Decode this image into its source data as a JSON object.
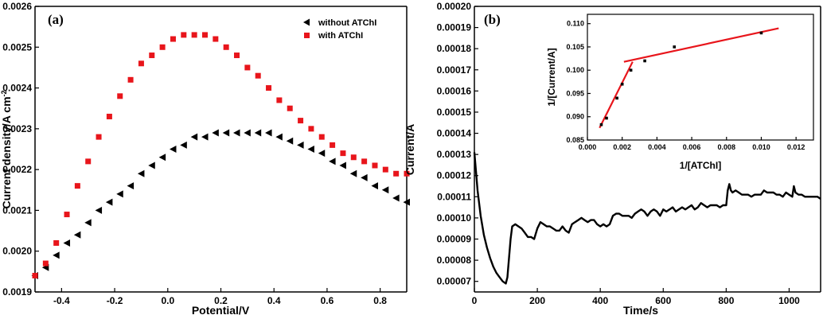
{
  "chart_data": [
    {
      "type": "scatter",
      "panel_label": "(a)",
      "xlabel": "Potential/V",
      "ylabel": "Current density/A cm",
      "ylabel_superscript": "-2",
      "xlim": [
        -0.5,
        0.9
      ],
      "ylim": [
        0.0019,
        0.0026
      ],
      "xticks": [
        -0.4,
        -0.2,
        0.0,
        0.2,
        0.4,
        0.6,
        0.8
      ],
      "xtick_labels": [
        "-0.4",
        "-0.2",
        "0.0",
        "0.2",
        "0.4",
        "0.6",
        "0.8"
      ],
      "yticks": [
        0.0019,
        0.002,
        0.0021,
        0.0022,
        0.0023,
        0.0024,
        0.0025,
        0.0026
      ],
      "ytick_labels": [
        "0.0019",
        "0.0020",
        "0.0021",
        "0.0022",
        "0.0023",
        "0.0024",
        "0.0025",
        "0.0026"
      ],
      "legend_position": "top-right",
      "series": [
        {
          "name": "without ATChI",
          "marker": "triangle-left",
          "color": "#000000",
          "x": [
            -0.5,
            -0.46,
            -0.42,
            -0.38,
            -0.34,
            -0.3,
            -0.26,
            -0.22,
            -0.18,
            -0.14,
            -0.1,
            -0.06,
            -0.02,
            0.02,
            0.06,
            0.1,
            0.14,
            0.18,
            0.22,
            0.26,
            0.3,
            0.34,
            0.38,
            0.42,
            0.46,
            0.5,
            0.54,
            0.58,
            0.62,
            0.66,
            0.7,
            0.74,
            0.78,
            0.82,
            0.86,
            0.9
          ],
          "y": [
            0.00194,
            0.00196,
            0.00199,
            0.00202,
            0.00204,
            0.00207,
            0.0021,
            0.00212,
            0.00214,
            0.00216,
            0.00219,
            0.00221,
            0.00223,
            0.00225,
            0.00226,
            0.00228,
            0.00228,
            0.00229,
            0.00229,
            0.00229,
            0.00229,
            0.00229,
            0.00229,
            0.00228,
            0.00227,
            0.00226,
            0.00225,
            0.00224,
            0.00222,
            0.00221,
            0.00219,
            0.00218,
            0.00216,
            0.00215,
            0.00213,
            0.00212
          ]
        },
        {
          "name": "with ATChI",
          "marker": "square",
          "color": "#e8151b",
          "x": [
            -0.5,
            -0.46,
            -0.42,
            -0.38,
            -0.34,
            -0.3,
            -0.26,
            -0.22,
            -0.18,
            -0.14,
            -0.1,
            -0.06,
            -0.02,
            0.02,
            0.06,
            0.1,
            0.14,
            0.18,
            0.22,
            0.26,
            0.3,
            0.34,
            0.38,
            0.42,
            0.46,
            0.5,
            0.54,
            0.58,
            0.62,
            0.66,
            0.7,
            0.74,
            0.78,
            0.82,
            0.86,
            0.9
          ],
          "y": [
            0.00194,
            0.00197,
            0.00202,
            0.00209,
            0.00216,
            0.00222,
            0.00228,
            0.00233,
            0.00238,
            0.00242,
            0.00246,
            0.00248,
            0.0025,
            0.00252,
            0.00253,
            0.00253,
            0.00253,
            0.00252,
            0.0025,
            0.00248,
            0.00245,
            0.00243,
            0.0024,
            0.00237,
            0.00235,
            0.00232,
            0.0023,
            0.00228,
            0.00226,
            0.00224,
            0.00223,
            0.00222,
            0.00221,
            0.0022,
            0.00219,
            0.00219
          ]
        }
      ]
    },
    {
      "type": "line",
      "panel_label": "(b)",
      "xlabel": "Time/s",
      "ylabel": "Current/A",
      "xlim": [
        0,
        1100
      ],
      "ylim": [
        6.5e-05,
        0.0002
      ],
      "xticks": [
        0,
        200,
        400,
        600,
        800,
        1000
      ],
      "xtick_labels": [
        "0",
        "200",
        "400",
        "600",
        "800",
        "1000"
      ],
      "yticks": [
        7e-05,
        8e-05,
        9e-05,
        0.0001,
        0.00011,
        0.00012,
        0.00013,
        0.00014,
        0.00015,
        0.00016,
        0.00017,
        0.00018,
        0.00019,
        0.0002
      ],
      "ytick_labels": [
        "0.00007",
        "0.00008",
        "0.00009",
        "0.00010",
        "0.00011",
        "0.00012",
        "0.00013",
        "0.00014",
        "0.00015",
        "0.00016",
        "0.00017",
        "0.00018",
        "0.00019",
        "0.00020"
      ],
      "series": [
        {
          "name": "current",
          "color": "#000000",
          "x": [
            0,
            5,
            10,
            20,
            30,
            40,
            50,
            60,
            70,
            80,
            90,
            100,
            105,
            110,
            115,
            120,
            130,
            140,
            150,
            160,
            170,
            180,
            190,
            200,
            210,
            220,
            230,
            240,
            250,
            260,
            270,
            280,
            290,
            300,
            310,
            320,
            330,
            340,
            350,
            360,
            370,
            380,
            390,
            400,
            410,
            420,
            430,
            440,
            450,
            460,
            470,
            480,
            490,
            500,
            510,
            520,
            530,
            540,
            550,
            560,
            570,
            580,
            590,
            600,
            610,
            620,
            630,
            640,
            650,
            660,
            670,
            680,
            690,
            700,
            710,
            720,
            730,
            740,
            750,
            760,
            770,
            780,
            790,
            800,
            805,
            810,
            815,
            820,
            830,
            840,
            850,
            860,
            870,
            880,
            890,
            900,
            910,
            920,
            930,
            940,
            950,
            960,
            970,
            980,
            990,
            1000,
            1010,
            1015,
            1020,
            1030,
            1040,
            1050,
            1060,
            1070,
            1080,
            1090,
            1100
          ],
          "y": [
            0.000131,
            0.000122,
            0.000113,
            0.000101,
            9.2e-05,
            8.6e-05,
            8.1e-05,
            7.7e-05,
            7.4e-05,
            7.2e-05,
            7e-05,
            6.9e-05,
            7.2e-05,
            8.1e-05,
            9e-05,
            9.6e-05,
            9.7e-05,
            9.6e-05,
            9.5e-05,
            9.3e-05,
            9.1e-05,
            9.1e-05,
            9e-05,
            9.5e-05,
            9.8e-05,
            9.7e-05,
            9.6e-05,
            9.6e-05,
            9.5e-05,
            9.4e-05,
            9.4e-05,
            9.6e-05,
            9.4e-05,
            9.3e-05,
            9.7e-05,
            9.8e-05,
            9.9e-05,
            0.0001,
            9.9e-05,
            9.8e-05,
            9.9e-05,
            9.9e-05,
            9.7e-05,
            9.6e-05,
            9.7e-05,
            9.6e-05,
            9.7e-05,
            0.000101,
            0.000102,
            0.000102,
            0.000101,
            0.000101,
            0.000101,
            0.0001,
            0.000102,
            0.000103,
            0.000104,
            0.000103,
            0.000101,
            0.000103,
            0.000104,
            0.000103,
            0.000101,
            0.000104,
            0.000103,
            0.000104,
            0.000105,
            0.000103,
            0.000104,
            0.000105,
            0.000104,
            0.000105,
            0.000106,
            0.000104,
            0.000105,
            0.000107,
            0.000106,
            0.000105,
            0.000106,
            0.000106,
            0.000106,
            0.000105,
            0.000106,
            0.000106,
            0.000113,
            0.000116,
            0.000113,
            0.000112,
            0.000113,
            0.000112,
            0.000111,
            0.000111,
            0.000111,
            0.00011,
            0.000111,
            0.000111,
            0.000111,
            0.000113,
            0.000112,
            0.000112,
            0.000112,
            0.000111,
            0.000111,
            0.00011,
            0.000112,
            0.000111,
            0.00011,
            0.000115,
            0.000112,
            0.000111,
            0.000111,
            0.00011,
            0.00011,
            0.00011,
            0.00011,
            0.00011,
            0.000109
          ]
        }
      ],
      "inset": {
        "type": "scatter",
        "xlabel": "1/[ATChI]",
        "ylabel": "1/[Current/A]",
        "xlim": [
          0.0,
          0.013
        ],
        "ylim": [
          0.085,
          0.112
        ],
        "xticks": [
          0.0,
          0.002,
          0.004,
          0.006,
          0.008,
          0.01,
          0.012
        ],
        "xtick_labels": [
          "0.000",
          "0.002",
          "0.004",
          "0.006",
          "0.008",
          "0.010",
          "0.012"
        ],
        "yticks": [
          0.085,
          0.09,
          0.095,
          0.1,
          0.105,
          0.11
        ],
        "ytick_labels": [
          "0.085",
          "0.090",
          "0.095",
          "0.100",
          "0.105",
          "0.110"
        ],
        "points": {
          "x": [
            0.0008,
            0.0011,
            0.0017,
            0.002,
            0.0025,
            0.0033,
            0.005,
            0.01
          ],
          "y": [
            0.0883,
            0.0897,
            0.094,
            0.097,
            0.1,
            0.102,
            0.105,
            0.108
          ]
        },
        "fit_lines": [
          {
            "x": [
              0.0007,
              0.0026
            ],
            "y": [
              0.0876,
              0.1018
            ],
            "color": "#e8151b"
          },
          {
            "x": [
              0.0021,
              0.011
            ],
            "y": [
              0.1018,
              0.109
            ],
            "color": "#e8151b"
          }
        ]
      }
    }
  ]
}
